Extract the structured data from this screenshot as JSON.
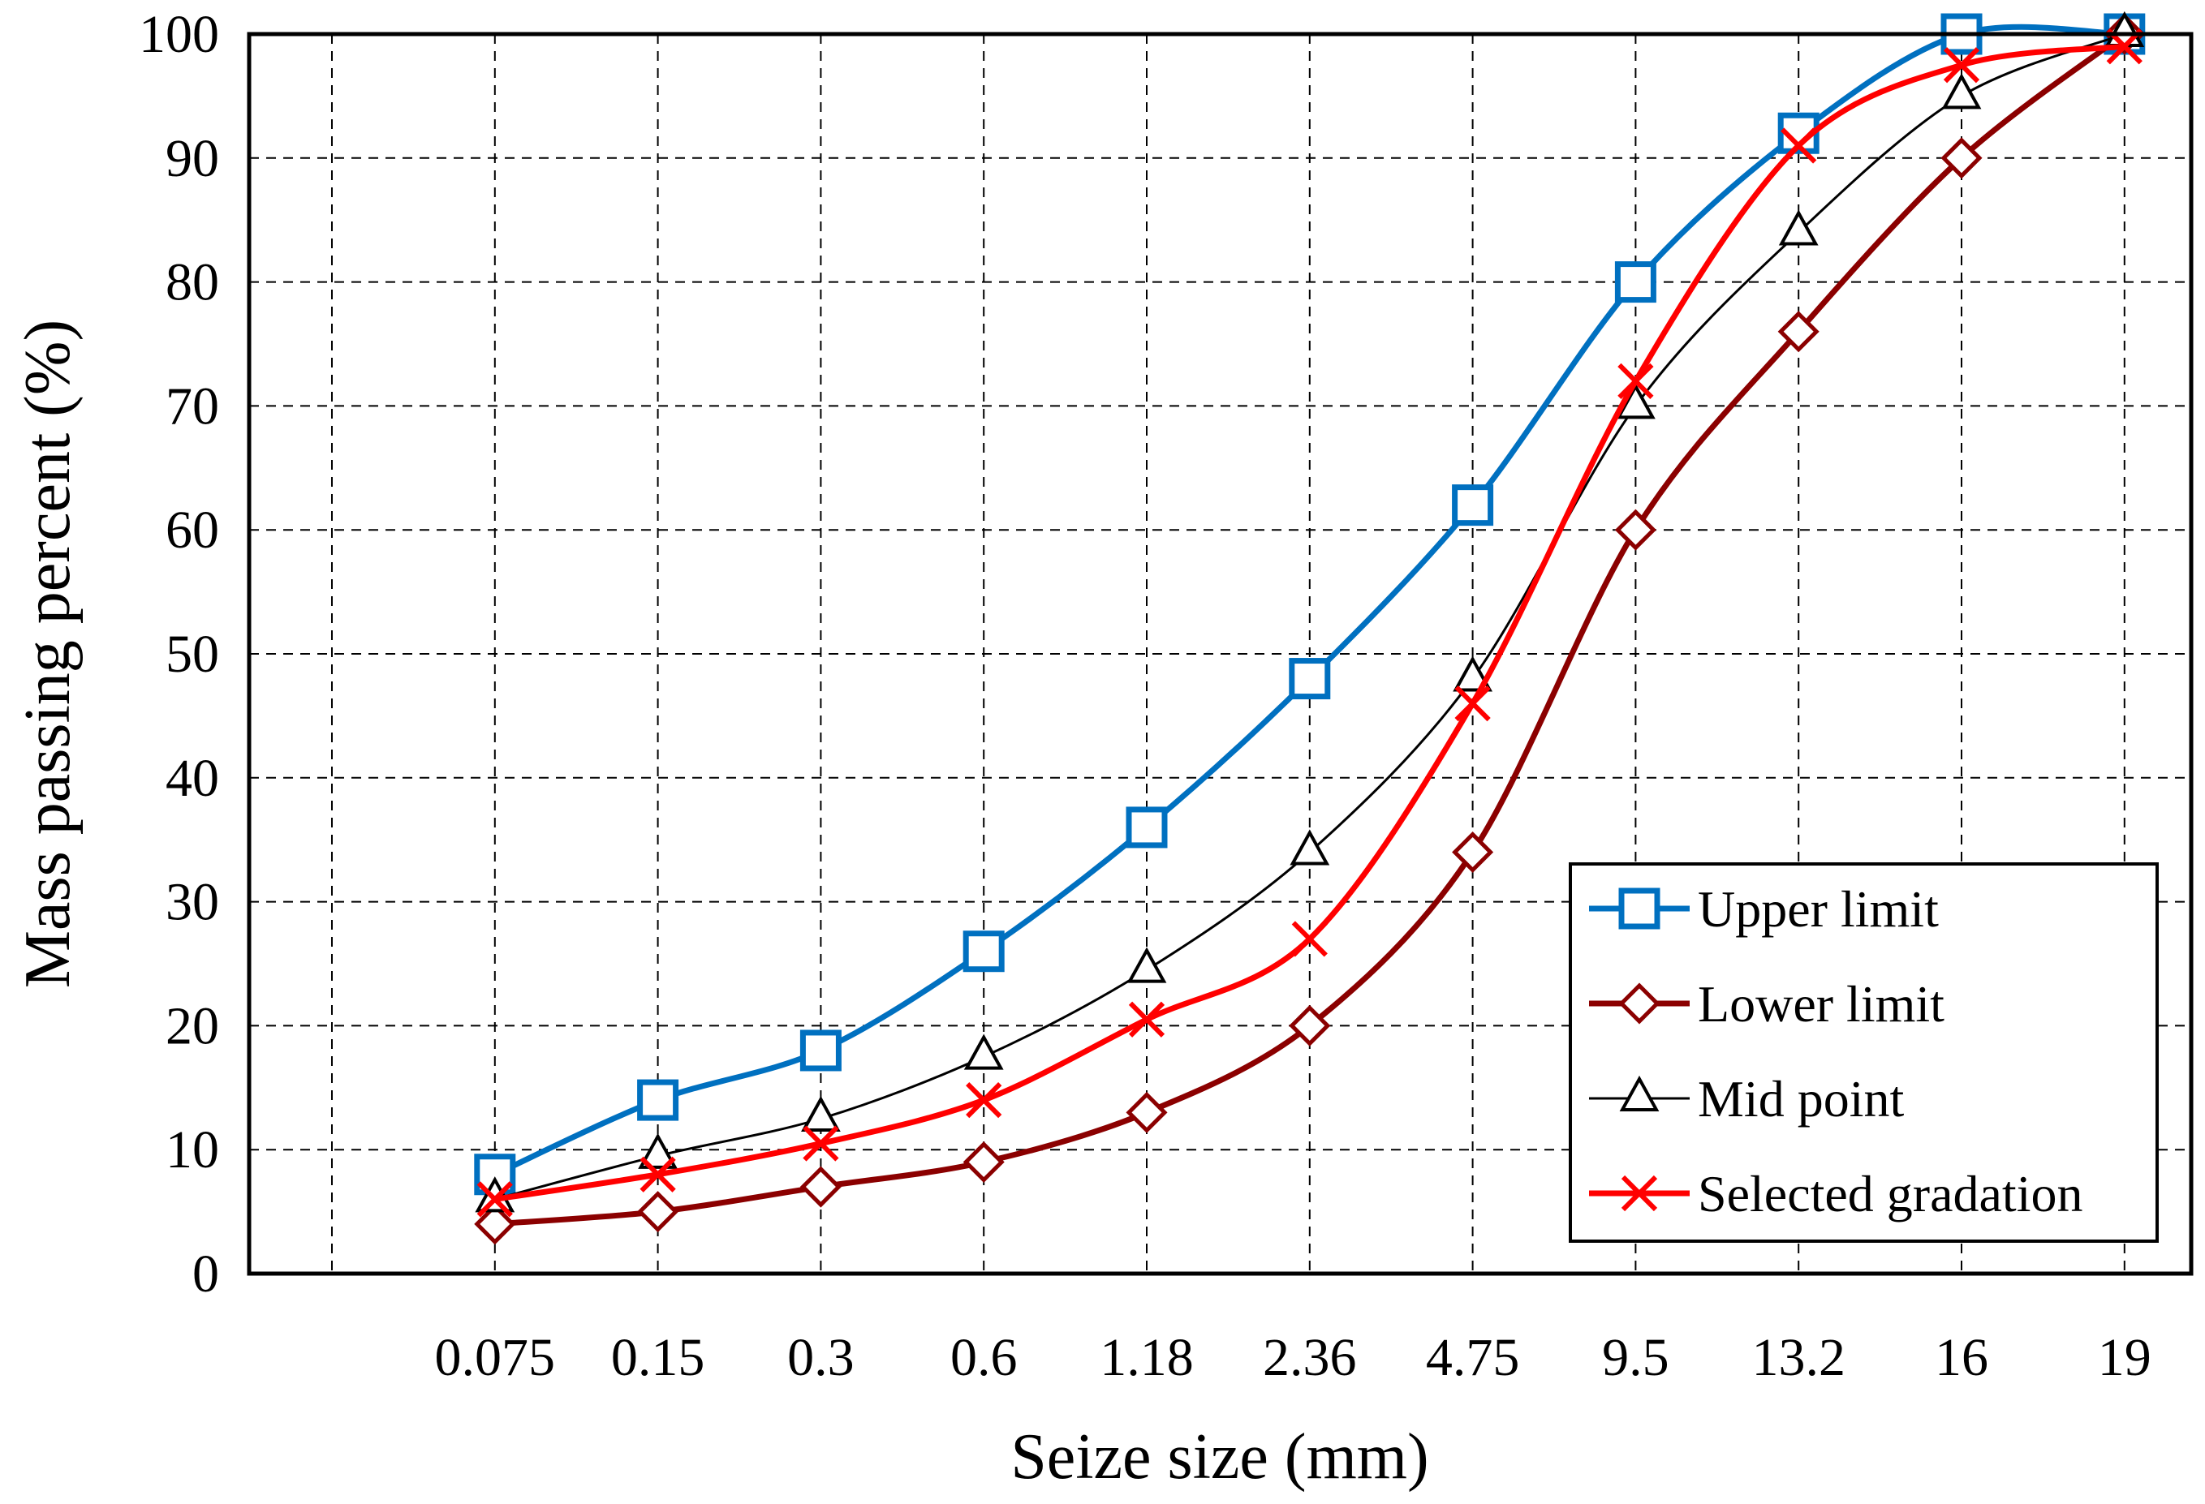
{
  "chart_data": {
    "type": "line",
    "title": "",
    "xlabel": "Seize size (mm)",
    "ylabel": "Mass passing percent (%)",
    "categories": [
      "0.075",
      "0.15",
      "0.3",
      "0.6",
      "1.18",
      "2.36",
      "4.75",
      "9.5",
      "13.2",
      "16",
      "19"
    ],
    "yticks": [
      "0",
      "10",
      "20",
      "30",
      "40",
      "50",
      "60",
      "70",
      "80",
      "90",
      "100"
    ],
    "ylim": [
      0,
      100
    ],
    "grid": true,
    "legend_position": "bottom-right",
    "series": [
      {
        "name": "Upper limit",
        "color": "#0070C0",
        "marker": "square",
        "values": [
          8,
          14,
          18,
          26,
          36,
          48,
          62,
          80,
          92,
          100,
          100
        ]
      },
      {
        "name": "Lower limit",
        "color": "#8B0000",
        "marker": "diamond",
        "values": [
          4,
          5,
          7,
          9,
          13,
          20,
          34,
          60,
          76,
          90,
          100
        ]
      },
      {
        "name": "Mid point",
        "color": "#000000",
        "marker": "triangle",
        "values": [
          6,
          9.5,
          12.5,
          17.5,
          24.5,
          34,
          48,
          70,
          84,
          95,
          100
        ]
      },
      {
        "name": "Selected gradation",
        "color": "#FF0000",
        "marker": "x",
        "values": [
          6,
          8,
          10.5,
          14,
          20.5,
          27,
          46,
          72,
          91,
          97.5,
          99
        ]
      }
    ]
  }
}
